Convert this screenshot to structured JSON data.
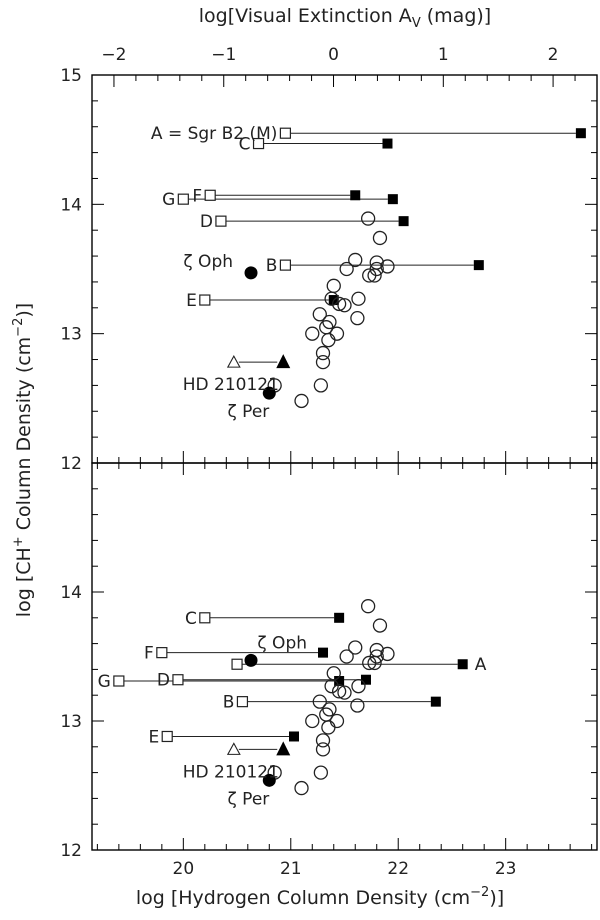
{
  "chart_data": {
    "type": "scatter",
    "top_axis": {
      "label": "log[Visual Extinction A",
      "label_sub": "V",
      "label_end": " (mag)]",
      "ticks": [
        -2,
        -1,
        0,
        1,
        2
      ],
      "tick_labels": [
        "−2",
        "−1",
        "0",
        "1",
        "2"
      ],
      "range": [
        -2.2,
        2.4
      ]
    },
    "xlabel": {
      "prefix": "log [Hydrogen Column Density (cm",
      "sup": "−2",
      "suffix": ")]"
    },
    "ylabel": {
      "prefix": "log [CH",
      "sup1": "+",
      "middle": " Column Density (cm",
      "sup2": "−2",
      "suffix": ")]"
    },
    "xlim": [
      19.15,
      23.85
    ],
    "x_ticks": [
      20,
      21,
      22,
      23
    ],
    "x_tick_labels": [
      "20",
      "21",
      "22",
      "23"
    ],
    "panels": [
      {
        "ylim": [
          12,
          15
        ],
        "y_ticks": [
          13,
          14,
          15
        ],
        "y_tick_labels": [
          "13",
          "14",
          "15"
        ],
        "lower_tick_label": "12",
        "pairs": [
          {
            "label": "A = Sgr B2 (M)",
            "x_open": 20.95,
            "x_filled": 23.7,
            "y": 14.55,
            "label_side": "left"
          },
          {
            "label": "C",
            "x_open": 20.7,
            "x_filled": 21.9,
            "y": 14.47,
            "label_side": "left"
          },
          {
            "label": "F",
            "x_open": 20.25,
            "x_filled": 21.6,
            "y": 14.07,
            "label_side": "left"
          },
          {
            "label": "G",
            "x_open": 20.0,
            "x_filled": 21.95,
            "y": 14.04,
            "label_side": "left"
          },
          {
            "label": "D",
            "x_open": 20.35,
            "x_filled": 22.05,
            "y": 13.87,
            "label_side": "left"
          },
          {
            "label": "B",
            "x_open": 20.95,
            "x_filled": 22.75,
            "y": 13.53,
            "label_side": "left"
          },
          {
            "label": "E",
            "x_open": 20.2,
            "x_filled": 21.4,
            "y": 13.26,
            "label_side": "left"
          }
        ],
        "labeled_stars": [
          {
            "label": "ζ Oph",
            "x": 20.63,
            "y": 13.47,
            "marker": "filled-circle"
          },
          {
            "label": "ζ Per",
            "x": 20.8,
            "y": 12.54,
            "marker": "filled-circle"
          }
        ],
        "hd_pair": {
          "label": "HD 210121",
          "x_open": 20.47,
          "x_filled": 20.93,
          "y": 12.78
        },
        "open_circles": [
          [
            20.85,
            12.6
          ],
          [
            21.1,
            12.48
          ],
          [
            21.28,
            12.6
          ],
          [
            21.3,
            12.78
          ],
          [
            21.3,
            12.85
          ],
          [
            21.35,
            12.95
          ],
          [
            21.43,
            13.0
          ],
          [
            21.2,
            13.0
          ],
          [
            21.33,
            13.05
          ],
          [
            21.36,
            13.09
          ],
          [
            21.27,
            13.15
          ],
          [
            21.4,
            13.37
          ],
          [
            21.45,
            13.23
          ],
          [
            21.38,
            13.27
          ],
          [
            21.5,
            13.22
          ],
          [
            21.63,
            13.27
          ],
          [
            21.62,
            13.12
          ],
          [
            21.52,
            13.5
          ],
          [
            21.6,
            13.57
          ],
          [
            21.73,
            13.45
          ],
          [
            21.78,
            13.45
          ],
          [
            21.8,
            13.5
          ],
          [
            21.8,
            13.55
          ],
          [
            21.9,
            13.52
          ],
          [
            21.83,
            13.74
          ],
          [
            21.72,
            13.89
          ]
        ]
      },
      {
        "ylim": [
          12,
          15
        ],
        "y_ticks": [
          12,
          13,
          14
        ],
        "y_tick_labels": [
          "12",
          "13",
          "14"
        ],
        "pairs": [
          {
            "label": "C",
            "x_open": 20.2,
            "x_filled": 21.45,
            "y": 13.8,
            "label_side": "left"
          },
          {
            "label": "F",
            "x_open": 19.8,
            "x_filled": 21.3,
            "y": 13.53,
            "label_side": "left"
          },
          {
            "label": "A",
            "x_open": 20.5,
            "x_filled": 22.6,
            "y": 13.44,
            "label_side": "right"
          },
          {
            "label": "D",
            "x_open": 19.95,
            "x_filled": 21.7,
            "y": 13.32,
            "label_side": "left"
          },
          {
            "label": "G",
            "x_open": 19.4,
            "x_filled": 21.45,
            "y": 13.31,
            "label_side": "left"
          },
          {
            "label": "B",
            "x_open": 20.55,
            "x_filled": 22.35,
            "y": 13.15,
            "label_side": "left"
          },
          {
            "label": "E",
            "x_open": 19.85,
            "x_filled": 21.03,
            "y": 12.88,
            "label_side": "left"
          }
        ],
        "labeled_stars": [
          {
            "label": "ζ Oph",
            "x": 20.63,
            "y": 13.47,
            "marker": "filled-circle"
          },
          {
            "label": "ζ Per",
            "x": 20.8,
            "y": 12.54,
            "marker": "filled-circle"
          }
        ],
        "hd_pair": {
          "label": "HD 210121",
          "x_open": 20.47,
          "x_filled": 20.93,
          "y": 12.78
        },
        "open_circles": [
          [
            20.85,
            12.6
          ],
          [
            21.1,
            12.48
          ],
          [
            21.28,
            12.6
          ],
          [
            21.3,
            12.78
          ],
          [
            21.3,
            12.85
          ],
          [
            21.35,
            12.95
          ],
          [
            21.43,
            13.0
          ],
          [
            21.2,
            13.0
          ],
          [
            21.33,
            13.05
          ],
          [
            21.36,
            13.09
          ],
          [
            21.27,
            13.15
          ],
          [
            21.4,
            13.37
          ],
          [
            21.45,
            13.23
          ],
          [
            21.38,
            13.27
          ],
          [
            21.5,
            13.22
          ],
          [
            21.63,
            13.27
          ],
          [
            21.62,
            13.12
          ],
          [
            21.52,
            13.5
          ],
          [
            21.6,
            13.57
          ],
          [
            21.73,
            13.45
          ],
          [
            21.78,
            13.45
          ],
          [
            21.8,
            13.5
          ],
          [
            21.8,
            13.55
          ],
          [
            21.9,
            13.52
          ],
          [
            21.83,
            13.74
          ],
          [
            21.72,
            13.89
          ]
        ]
      }
    ],
    "grid": false
  }
}
